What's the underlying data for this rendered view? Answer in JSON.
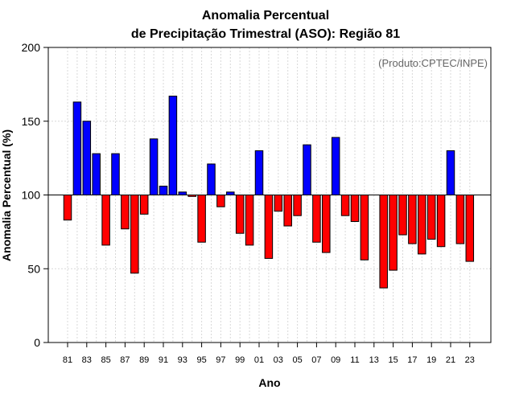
{
  "chart_data": {
    "type": "bar",
    "title_line1": "Anomalia Percentual",
    "title_line2": "de Precipitação Trimestral (ASO): Região 81",
    "xlabel": "Ano",
    "ylabel": "Anomalia Percentual (%)",
    "source": "(Produto:CPTEC/INPE)",
    "baseline": 100,
    "ylim": [
      0,
      200
    ],
    "yticks": [
      0,
      50,
      100,
      150,
      200
    ],
    "grid": true,
    "colors": {
      "above": "#0000ff",
      "below": "#ff0000",
      "outline": "#000000"
    },
    "categories": [
      "81",
      "82",
      "83",
      "84",
      "85",
      "86",
      "87",
      "88",
      "89",
      "90",
      "91",
      "92",
      "93",
      "94",
      "95",
      "96",
      "97",
      "98",
      "99",
      "00",
      "01",
      "02",
      "03",
      "04",
      "05",
      "06",
      "07",
      "08",
      "09",
      "10",
      "11",
      "12",
      "13",
      "14",
      "15",
      "16",
      "17",
      "18",
      "19",
      "20",
      "21",
      "22",
      "23"
    ],
    "xtick_labels": [
      "81",
      "83",
      "85",
      "87",
      "89",
      "91",
      "93",
      "95",
      "97",
      "99",
      "01",
      "03",
      "05",
      "07",
      "09",
      "11",
      "13",
      "15",
      "17",
      "19",
      "21",
      "23"
    ],
    "values": [
      83,
      163,
      150,
      128,
      66,
      128,
      77,
      47,
      87,
      138,
      106,
      167,
      102,
      99,
      68,
      121,
      92,
      102,
      74,
      66,
      130,
      57,
      89,
      79,
      86,
      134,
      68,
      61,
      139,
      86,
      82,
      56,
      100,
      37,
      49,
      73,
      67,
      60,
      70,
      65,
      130,
      67,
      55
    ]
  }
}
